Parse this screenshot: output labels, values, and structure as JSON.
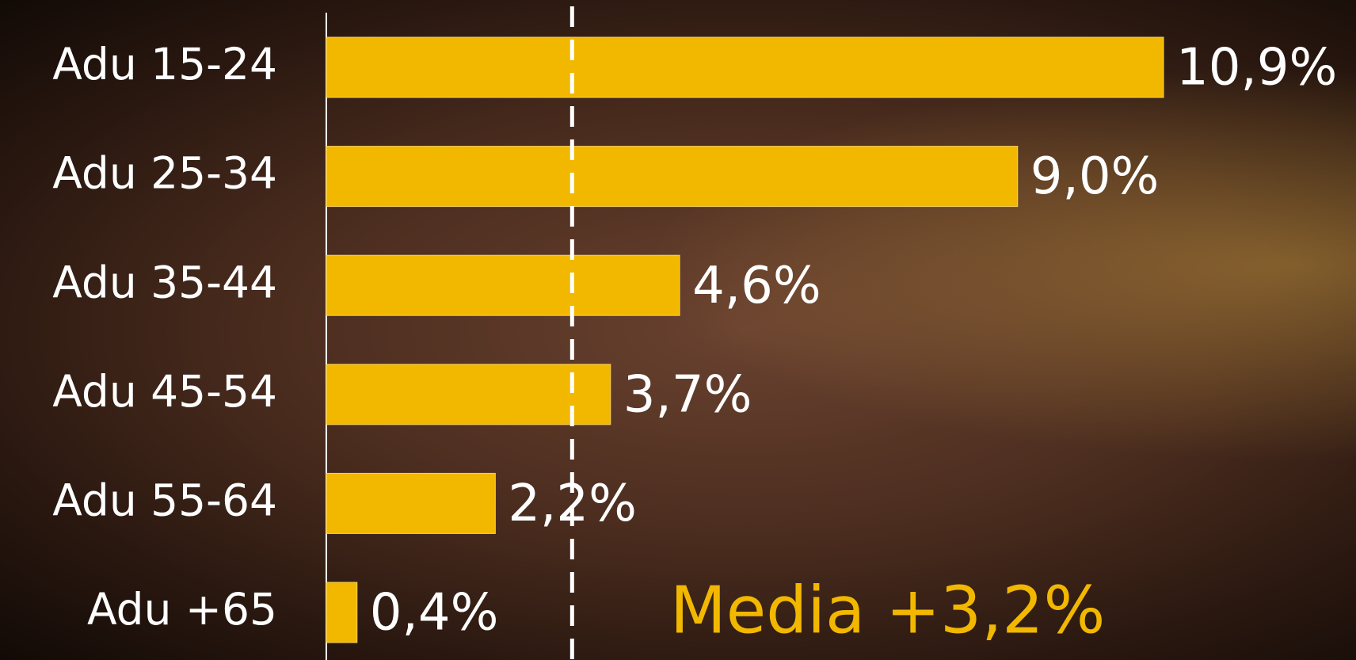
{
  "chart_data": {
    "type": "hbar",
    "categories": [
      "Adu 15-24",
      "Adu 25-34",
      "Adu 35-44",
      "Adu 45-54",
      "Adu 55-64",
      "Adu +65"
    ],
    "values": [
      10.9,
      9.0,
      4.6,
      3.7,
      2.2,
      0.4
    ],
    "value_labels": [
      "10,9%",
      "9,0%",
      "4,6%",
      "3,7%",
      "2,2%",
      "0,4%"
    ],
    "color": "#f2b800",
    "mean": {
      "value": 3.2,
      "label": "Media +3,2%"
    }
  }
}
